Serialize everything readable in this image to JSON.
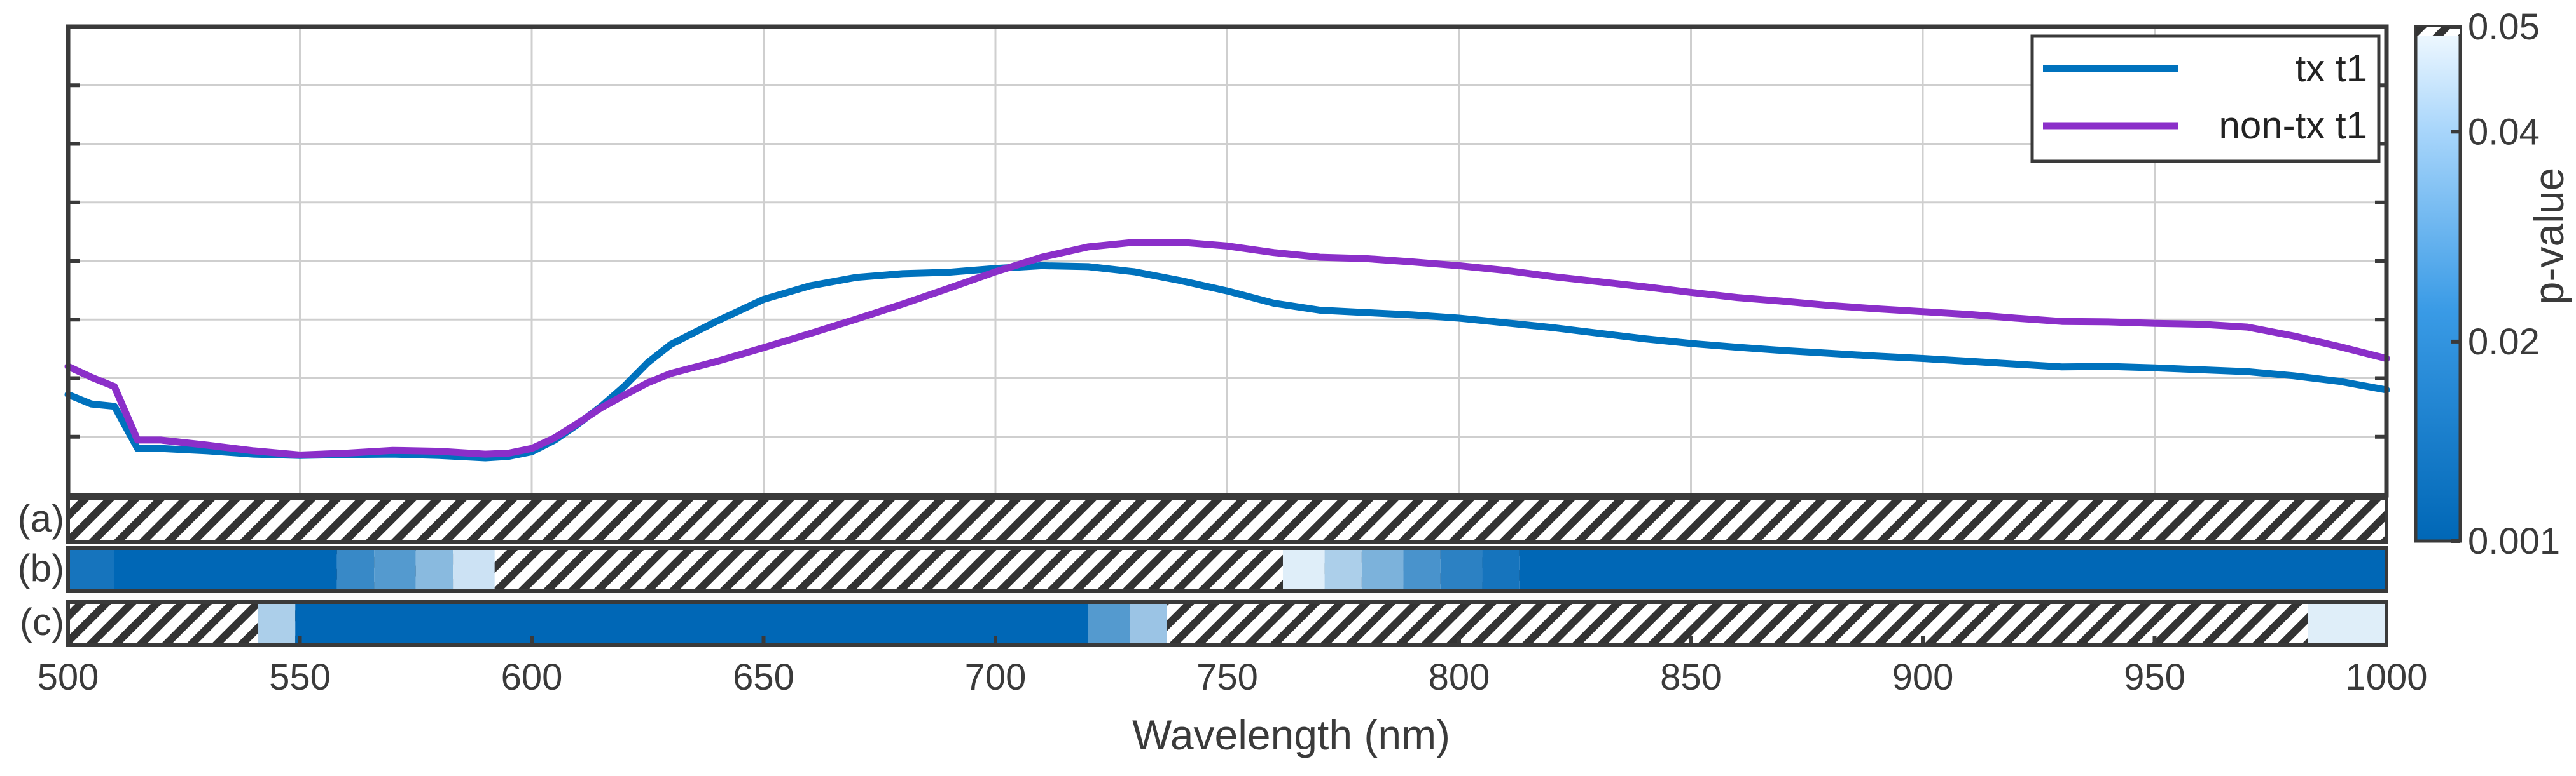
{
  "chart_data": {
    "type": "line",
    "xlabel": "Wavelength (nm)",
    "ylabel": "",
    "xlim": [
      500,
      1000
    ],
    "ylim": [
      0,
      1
    ],
    "x_ticks": [
      500,
      550,
      600,
      650,
      700,
      750,
      800,
      850,
      900,
      950,
      1000
    ],
    "grid": true,
    "legend_position": "top-right",
    "series": [
      {
        "name": "tx t1",
        "color": "#0072bd",
        "x": [
          500,
          505,
          510,
          515,
          520,
          530,
          540,
          550,
          560,
          570,
          580,
          590,
          595,
          600,
          605,
          610,
          615,
          620,
          625,
          630,
          640,
          650,
          660,
          670,
          680,
          690,
          700,
          710,
          720,
          730,
          740,
          750,
          760,
          770,
          780,
          790,
          800,
          810,
          820,
          830,
          840,
          850,
          860,
          870,
          880,
          890,
          900,
          910,
          920,
          930,
          940,
          950,
          960,
          970,
          980,
          990,
          1000
        ],
        "y": [
          0.215,
          0.195,
          0.19,
          0.1,
          0.1,
          0.095,
          0.088,
          0.085,
          0.087,
          0.088,
          0.085,
          0.08,
          0.083,
          0.093,
          0.118,
          0.152,
          0.19,
          0.233,
          0.283,
          0.322,
          0.372,
          0.418,
          0.447,
          0.465,
          0.473,
          0.476,
          0.484,
          0.49,
          0.488,
          0.477,
          0.458,
          0.436,
          0.41,
          0.395,
          0.39,
          0.385,
          0.378,
          0.368,
          0.358,
          0.346,
          0.334,
          0.324,
          0.316,
          0.309,
          0.303,
          0.297,
          0.292,
          0.286,
          0.28,
          0.274,
          0.275,
          0.272,
          0.268,
          0.264,
          0.255,
          0.243,
          0.225
        ]
      },
      {
        "name": "non-tx t1",
        "color": "#8b2fc9",
        "x": [
          500,
          505,
          510,
          515,
          520,
          530,
          540,
          550,
          560,
          570,
          580,
          590,
          595,
          600,
          605,
          610,
          615,
          620,
          625,
          630,
          640,
          650,
          660,
          670,
          680,
          690,
          700,
          710,
          720,
          730,
          740,
          750,
          760,
          770,
          780,
          790,
          800,
          810,
          820,
          830,
          840,
          850,
          860,
          870,
          880,
          890,
          900,
          910,
          920,
          930,
          940,
          950,
          960,
          970,
          980,
          990,
          1000
        ],
        "y": [
          0.275,
          0.252,
          0.232,
          0.118,
          0.118,
          0.107,
          0.095,
          0.086,
          0.09,
          0.096,
          0.094,
          0.088,
          0.09,
          0.1,
          0.123,
          0.154,
          0.187,
          0.214,
          0.24,
          0.26,
          0.286,
          0.315,
          0.345,
          0.376,
          0.408,
          0.442,
          0.477,
          0.508,
          0.53,
          0.54,
          0.54,
          0.532,
          0.518,
          0.508,
          0.505,
          0.498,
          0.49,
          0.48,
          0.467,
          0.456,
          0.445,
          0.433,
          0.422,
          0.414,
          0.405,
          0.398,
          0.392,
          0.386,
          0.378,
          0.371,
          0.37,
          0.367,
          0.365,
          0.359,
          0.34,
          0.317,
          0.292
        ]
      }
    ],
    "significance_bands": [
      {
        "label": "(a)",
        "segments": []
      },
      {
        "label": "(b)",
        "segments": [
          {
            "x0": 500,
            "x1": 510,
            "p": 0.003
          },
          {
            "x0": 510,
            "x1": 558,
            "p": 0.001
          },
          {
            "x0": 558,
            "x1": 566,
            "p": 0.008
          },
          {
            "x0": 566,
            "x1": 575,
            "p": 0.013
          },
          {
            "x0": 575,
            "x1": 583,
            "p": 0.024
          },
          {
            "x0": 583,
            "x1": 592,
            "p": 0.04
          },
          {
            "x0": 762,
            "x1": 771,
            "p": 0.045
          },
          {
            "x0": 771,
            "x1": 779,
            "p": 0.032
          },
          {
            "x0": 779,
            "x1": 788,
            "p": 0.021
          },
          {
            "x0": 788,
            "x1": 796,
            "p": 0.011
          },
          {
            "x0": 796,
            "x1": 805,
            "p": 0.006
          },
          {
            "x0": 805,
            "x1": 813,
            "p": 0.003
          },
          {
            "x0": 813,
            "x1": 1000,
            "p": 0.001
          }
        ]
      },
      {
        "label": "(c)",
        "segments": [
          {
            "x0": 541,
            "x1": 549,
            "p": 0.032
          },
          {
            "x0": 549,
            "x1": 720,
            "p": 0.001
          },
          {
            "x0": 720,
            "x1": 729,
            "p": 0.013
          },
          {
            "x0": 729,
            "x1": 737,
            "p": 0.028
          },
          {
            "x0": 983,
            "x1": 1000,
            "p": 0.045
          }
        ]
      }
    ],
    "colorbar": {
      "label": "p-value",
      "ticks": [
        "0.05",
        "0.04",
        "0.02",
        "0.001"
      ],
      "tick_values": [
        0.05,
        0.04,
        0.02,
        0.001
      ],
      "range": [
        0.001,
        0.05
      ],
      "color_low": "#0067b6",
      "color_high": "#f2f9ff"
    }
  }
}
